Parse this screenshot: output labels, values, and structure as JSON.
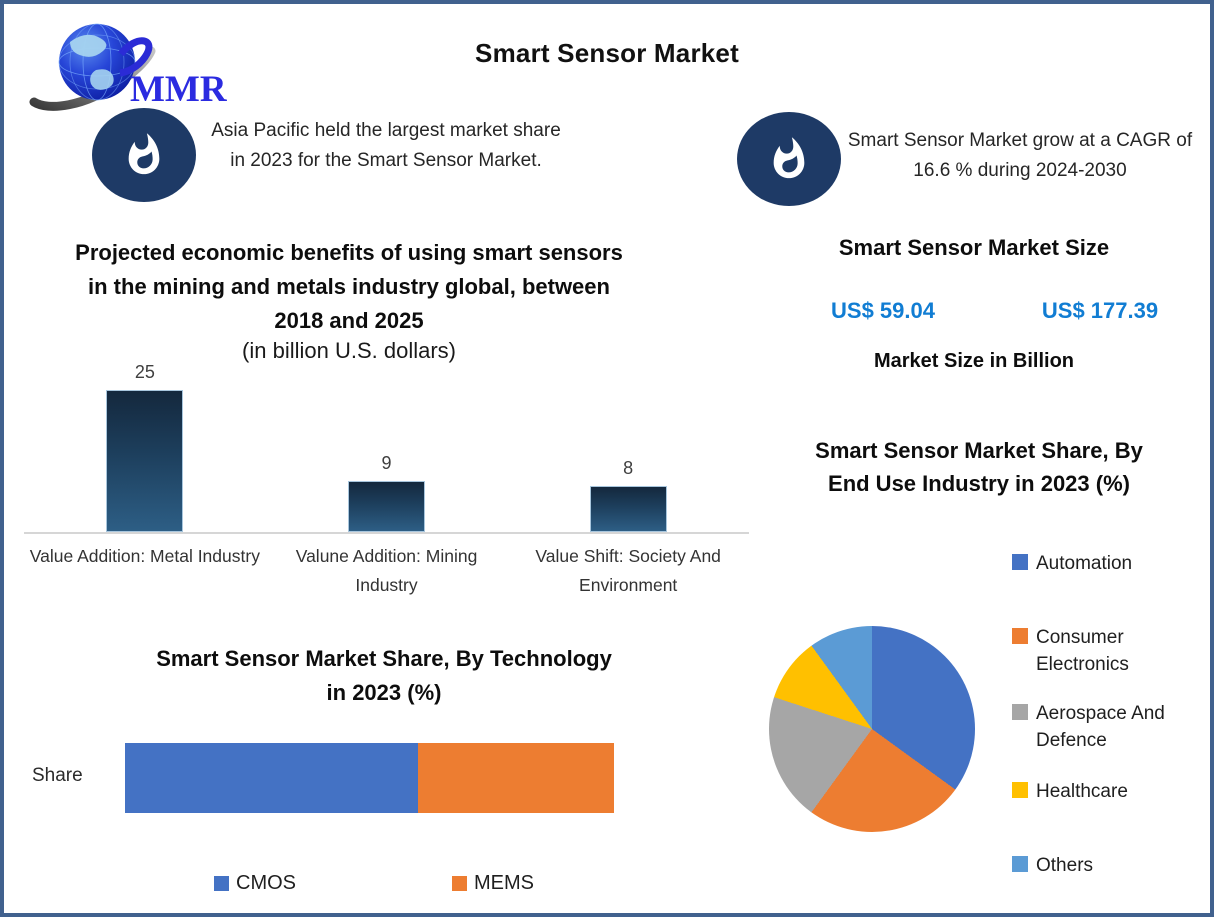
{
  "header": {
    "title": "Smart Sensor Market",
    "logo_text": "MMR"
  },
  "callouts": [
    {
      "text": "Asia Pacific held the largest market share in 2023 for the Smart Sensor Market."
    },
    {
      "text": "Smart Sensor Market grow at a CAGR of 16.6 % during 2024-2030"
    }
  ],
  "market_size": {
    "title": "Smart Sensor Market Size",
    "value_start": "US$ 59.04",
    "value_end": "US$ 177.39",
    "caption": "Market Size in Billion"
  },
  "colors": {
    "border": "#41618e",
    "flame_ellipse": "#1e3a66",
    "value_text_blue": "#117dd3",
    "bar_gradient_top": "#14283d",
    "bar_gradient_bottom": "#2d5e85"
  },
  "chart_data": [
    {
      "id": "mining_benefits_bar",
      "type": "bar",
      "title": "Projected economic benefits of using smart sensors in the mining and metals industry global, between 2018 and 2025",
      "subtitle": "(in billion U.S. dollars)",
      "categories": [
        "Value Addition: Metal Industry",
        "Valune Addition: Mining Industry",
        "Value Shift: Society And Environment"
      ],
      "values": [
        25,
        9,
        8
      ],
      "ylim": [
        0,
        27
      ],
      "grid": false,
      "data_labels": true
    },
    {
      "id": "technology_share_bar",
      "type": "stacked-bar",
      "title": "Smart Sensor Market Share, By Technology in 2023 (%)",
      "row_label": "Share",
      "categories": [
        "Share"
      ],
      "series": [
        {
          "name": "CMOS",
          "value": 60,
          "color": "#4472c4"
        },
        {
          "name": "MEMS",
          "value": 40,
          "color": "#ed7d31"
        }
      ],
      "legend_position": "bottom"
    },
    {
      "id": "end_use_pie",
      "type": "pie",
      "title": "Smart Sensor Market Share, By End Use Industry in 2023 (%)",
      "slices": [
        {
          "label": "Automation",
          "value": 35,
          "color": "#4472c4"
        },
        {
          "label": "Consumer Electronics",
          "value": 25,
          "color": "#ed7d31"
        },
        {
          "label": "Aerospace And Defence",
          "value": 20,
          "color": "#a6a6a6"
        },
        {
          "label": "Healthcare",
          "value": 10,
          "color": "#ffc000"
        },
        {
          "label": "Others",
          "value": 10,
          "color": "#5b9bd5"
        }
      ],
      "legend_position": "right"
    }
  ]
}
